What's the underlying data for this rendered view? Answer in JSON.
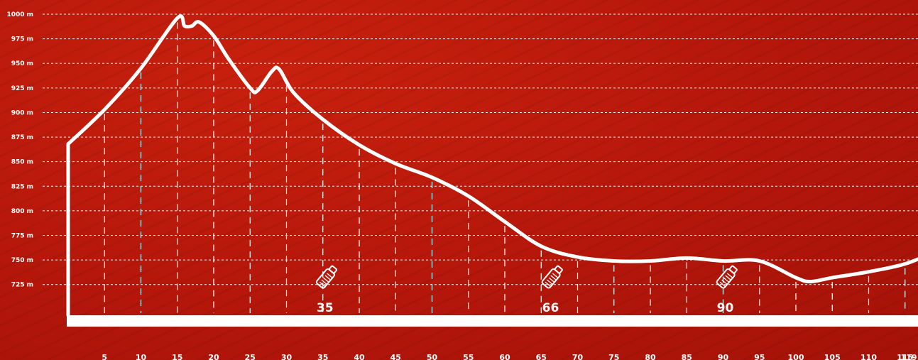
{
  "chart_data": {
    "type": "area",
    "title": "",
    "xlabel": "",
    "ylabel": "",
    "y_unit": "m",
    "ylim": [
      715,
      1000
    ],
    "xlim": [
      0,
      119
    ],
    "grid": "horizontal dashed",
    "y_ticks": [
      "725 m",
      "750 m",
      "775 m",
      "800 m",
      "825 m",
      "850 m",
      "875 m",
      "900 m",
      "925 m",
      "950 m",
      "975 m",
      "1000 m"
    ],
    "y_tick_values": [
      725,
      750,
      775,
      800,
      825,
      850,
      875,
      900,
      925,
      950,
      975,
      1000
    ],
    "x_ticks": [
      "5",
      "10",
      "15",
      "20",
      "25",
      "30",
      "35",
      "40",
      "45",
      "50",
      "55",
      "60",
      "65",
      "70",
      "75",
      "80",
      "85",
      "90",
      "95",
      "100",
      "105",
      "110",
      "115",
      "119"
    ],
    "x_tick_values": [
      5,
      10,
      15,
      20,
      25,
      30,
      35,
      40,
      45,
      50,
      55,
      60,
      65,
      70,
      75,
      80,
      85,
      90,
      95,
      100,
      105,
      110,
      115,
      119
    ],
    "series": [
      {
        "x": [
          0,
          5,
          10,
          15,
          16,
          17,
          18,
          20,
          22,
          25,
          26,
          28,
          29,
          31,
          35,
          40,
          45,
          50,
          55,
          60,
          65,
          70,
          75,
          80,
          85,
          90,
          95,
          100,
          102,
          105,
          110,
          115,
          119
        ],
        "y": [
          868,
          903,
          945,
          996,
          988,
          988,
          992,
          978,
          955,
          925,
          922,
          942,
          944,
          920,
          893,
          867,
          848,
          834,
          815,
          789,
          764,
          753,
          749,
          749,
          752,
          749,
          749,
          732,
          728,
          732,
          738,
          746,
          758
        ]
      }
    ],
    "aid_stations": [
      {
        "km": 35,
        "label": "35",
        "icon": "water-bottle-icon"
      },
      {
        "km": 66,
        "label": "66",
        "icon": "water-bottle-icon"
      },
      {
        "km": 90,
        "label": "90",
        "icon": "water-bottle-icon"
      }
    ],
    "colors": {
      "background": "#b8180a",
      "line": "#ffffff",
      "grid": "#ffffff"
    }
  }
}
